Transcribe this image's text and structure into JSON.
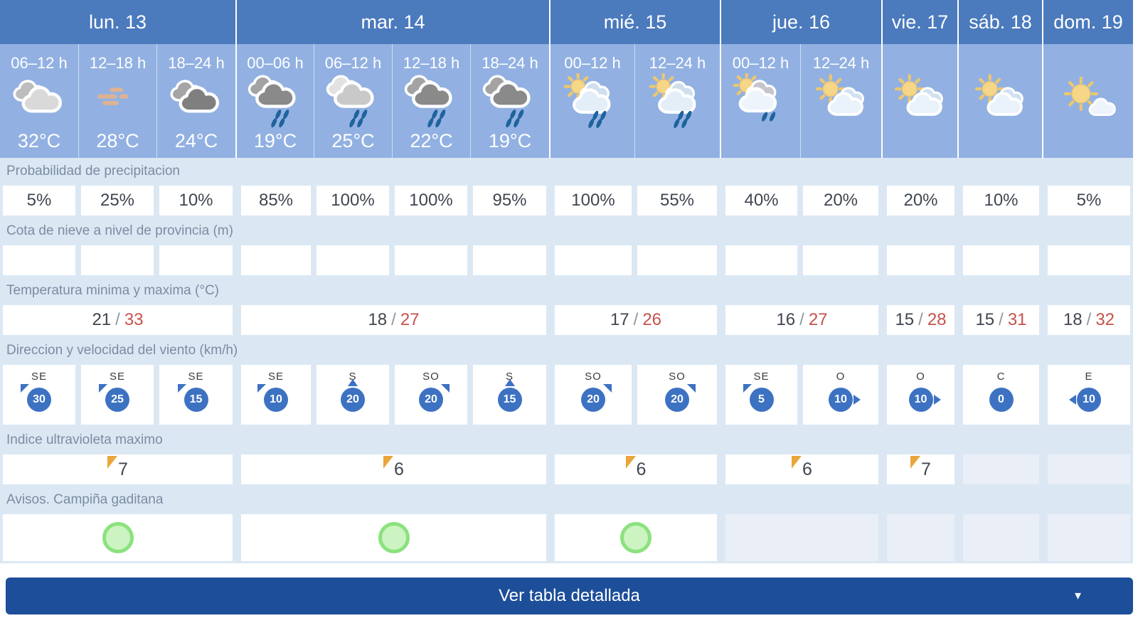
{
  "days": [
    {
      "label": "lun. 13",
      "span": 3
    },
    {
      "label": "mar. 14",
      "span": 4
    },
    {
      "label": "mié. 15",
      "span": 2
    },
    {
      "label": "jue. 16",
      "span": 2
    },
    {
      "label": "vie. 17",
      "span": 1
    },
    {
      "label": "sáb. 18",
      "span": 1
    },
    {
      "label": "dom. 19",
      "span": 1
    }
  ],
  "columns": [
    {
      "time": "06–12 h",
      "icon": "cloudy",
      "temp": "32°C"
    },
    {
      "time": "12–18 h",
      "icon": "haze",
      "temp": "28°C"
    },
    {
      "time": "18–24 h",
      "icon": "dark-cloudy",
      "temp": "24°C"
    },
    {
      "time": "00–06 h",
      "icon": "rain",
      "temp": "19°C"
    },
    {
      "time": "06–12 h",
      "icon": "light-rain",
      "temp": "25°C"
    },
    {
      "time": "12–18 h",
      "icon": "rain",
      "temp": "22°C"
    },
    {
      "time": "18–24 h",
      "icon": "rain",
      "temp": "19°C"
    },
    {
      "time": "00–12 h",
      "icon": "sun-rain",
      "temp": ""
    },
    {
      "time": "12–24 h",
      "icon": "sun-rain",
      "temp": ""
    },
    {
      "time": "00–12 h",
      "icon": "sun-light-rain",
      "temp": ""
    },
    {
      "time": "12–24 h",
      "icon": "sun-cloud",
      "temp": ""
    },
    {
      "time": "",
      "icon": "sun-cloud",
      "temp": ""
    },
    {
      "time": "",
      "icon": "sun-cloud",
      "temp": ""
    },
    {
      "time": "",
      "icon": "mostly-sunny",
      "temp": ""
    }
  ],
  "sections": {
    "precipitation": {
      "label": "Probabilidad de precipitacion",
      "values": [
        "5%",
        "25%",
        "10%",
        "85%",
        "100%",
        "100%",
        "95%",
        "100%",
        "55%",
        "40%",
        "20%",
        "20%",
        "10%",
        "5%"
      ]
    },
    "snow": {
      "label": "Cota de nieve a nivel de provincia (m)",
      "values": [
        "",
        "",
        "",
        "",
        "",
        "",
        "",
        "",
        "",
        "",
        "",
        "",
        "",
        ""
      ]
    },
    "temperature": {
      "label": "Temperatura minima y maxima (°C)",
      "values": [
        {
          "min": "21",
          "max": "33"
        },
        {
          "min": "18",
          "max": "27"
        },
        {
          "min": "17",
          "max": "26"
        },
        {
          "min": "16",
          "max": "27"
        },
        {
          "min": "15",
          "max": "28"
        },
        {
          "min": "15",
          "max": "31"
        },
        {
          "min": "18",
          "max": "32"
        }
      ]
    },
    "wind": {
      "label": "Direccion y velocidad del viento (km/h)",
      "values": [
        {
          "dir": "SE",
          "speed": "30",
          "arrow": "nw"
        },
        {
          "dir": "SE",
          "speed": "25",
          "arrow": "nw"
        },
        {
          "dir": "SE",
          "speed": "15",
          "arrow": "nw"
        },
        {
          "dir": "SE",
          "speed": "10",
          "arrow": "nw"
        },
        {
          "dir": "S",
          "speed": "20",
          "arrow": "n"
        },
        {
          "dir": "SO",
          "speed": "20",
          "arrow": "ne"
        },
        {
          "dir": "S",
          "speed": "15",
          "arrow": "n"
        },
        {
          "dir": "SO",
          "speed": "20",
          "arrow": "ne"
        },
        {
          "dir": "SO",
          "speed": "20",
          "arrow": "ne"
        },
        {
          "dir": "SE",
          "speed": "5",
          "arrow": "nw"
        },
        {
          "dir": "O",
          "speed": "10",
          "arrow": "e"
        },
        {
          "dir": "O",
          "speed": "10",
          "arrow": "e"
        },
        {
          "dir": "C",
          "speed": "0",
          "arrow": "none"
        },
        {
          "dir": "E",
          "speed": "10",
          "arrow": "w"
        }
      ]
    },
    "uv": {
      "label": "Indice ultravioleta maximo",
      "values": [
        {
          "value": "7",
          "disabled": false
        },
        {
          "value": "6",
          "disabled": false
        },
        {
          "value": "6",
          "disabled": false
        },
        {
          "value": "6",
          "disabled": false
        },
        {
          "value": "7",
          "disabled": false
        },
        {
          "value": "",
          "disabled": true
        },
        {
          "value": "",
          "disabled": true
        }
      ]
    },
    "warnings": {
      "label": "Avisos. Campiña gaditana",
      "values": [
        {
          "circle": "green",
          "disabled": false
        },
        {
          "circle": "green",
          "disabled": false
        },
        {
          "circle": "green",
          "disabled": false
        },
        {
          "circle": "none",
          "disabled": true
        },
        {
          "circle": "none",
          "disabled": true
        },
        {
          "circle": "none",
          "disabled": true
        },
        {
          "circle": "none",
          "disabled": true
        }
      ]
    }
  },
  "button": {
    "label": "Ver tabla detallada",
    "caret": "▼"
  },
  "colors": {
    "day_header_bg": "#4b7abd",
    "hours_bg": "#92b1e2",
    "table_bg": "#dbe8f4",
    "disabled_cell_bg": "#e9eef7",
    "temp_max": "#c5524c",
    "wind_blue": "#3d72c2",
    "rain_drop": "#1f639c",
    "uv_flag": "#e9a63b",
    "warning_fill": "#ccf3c2",
    "warning_border": "#8be27e",
    "button_bg": "#1d4e99"
  }
}
